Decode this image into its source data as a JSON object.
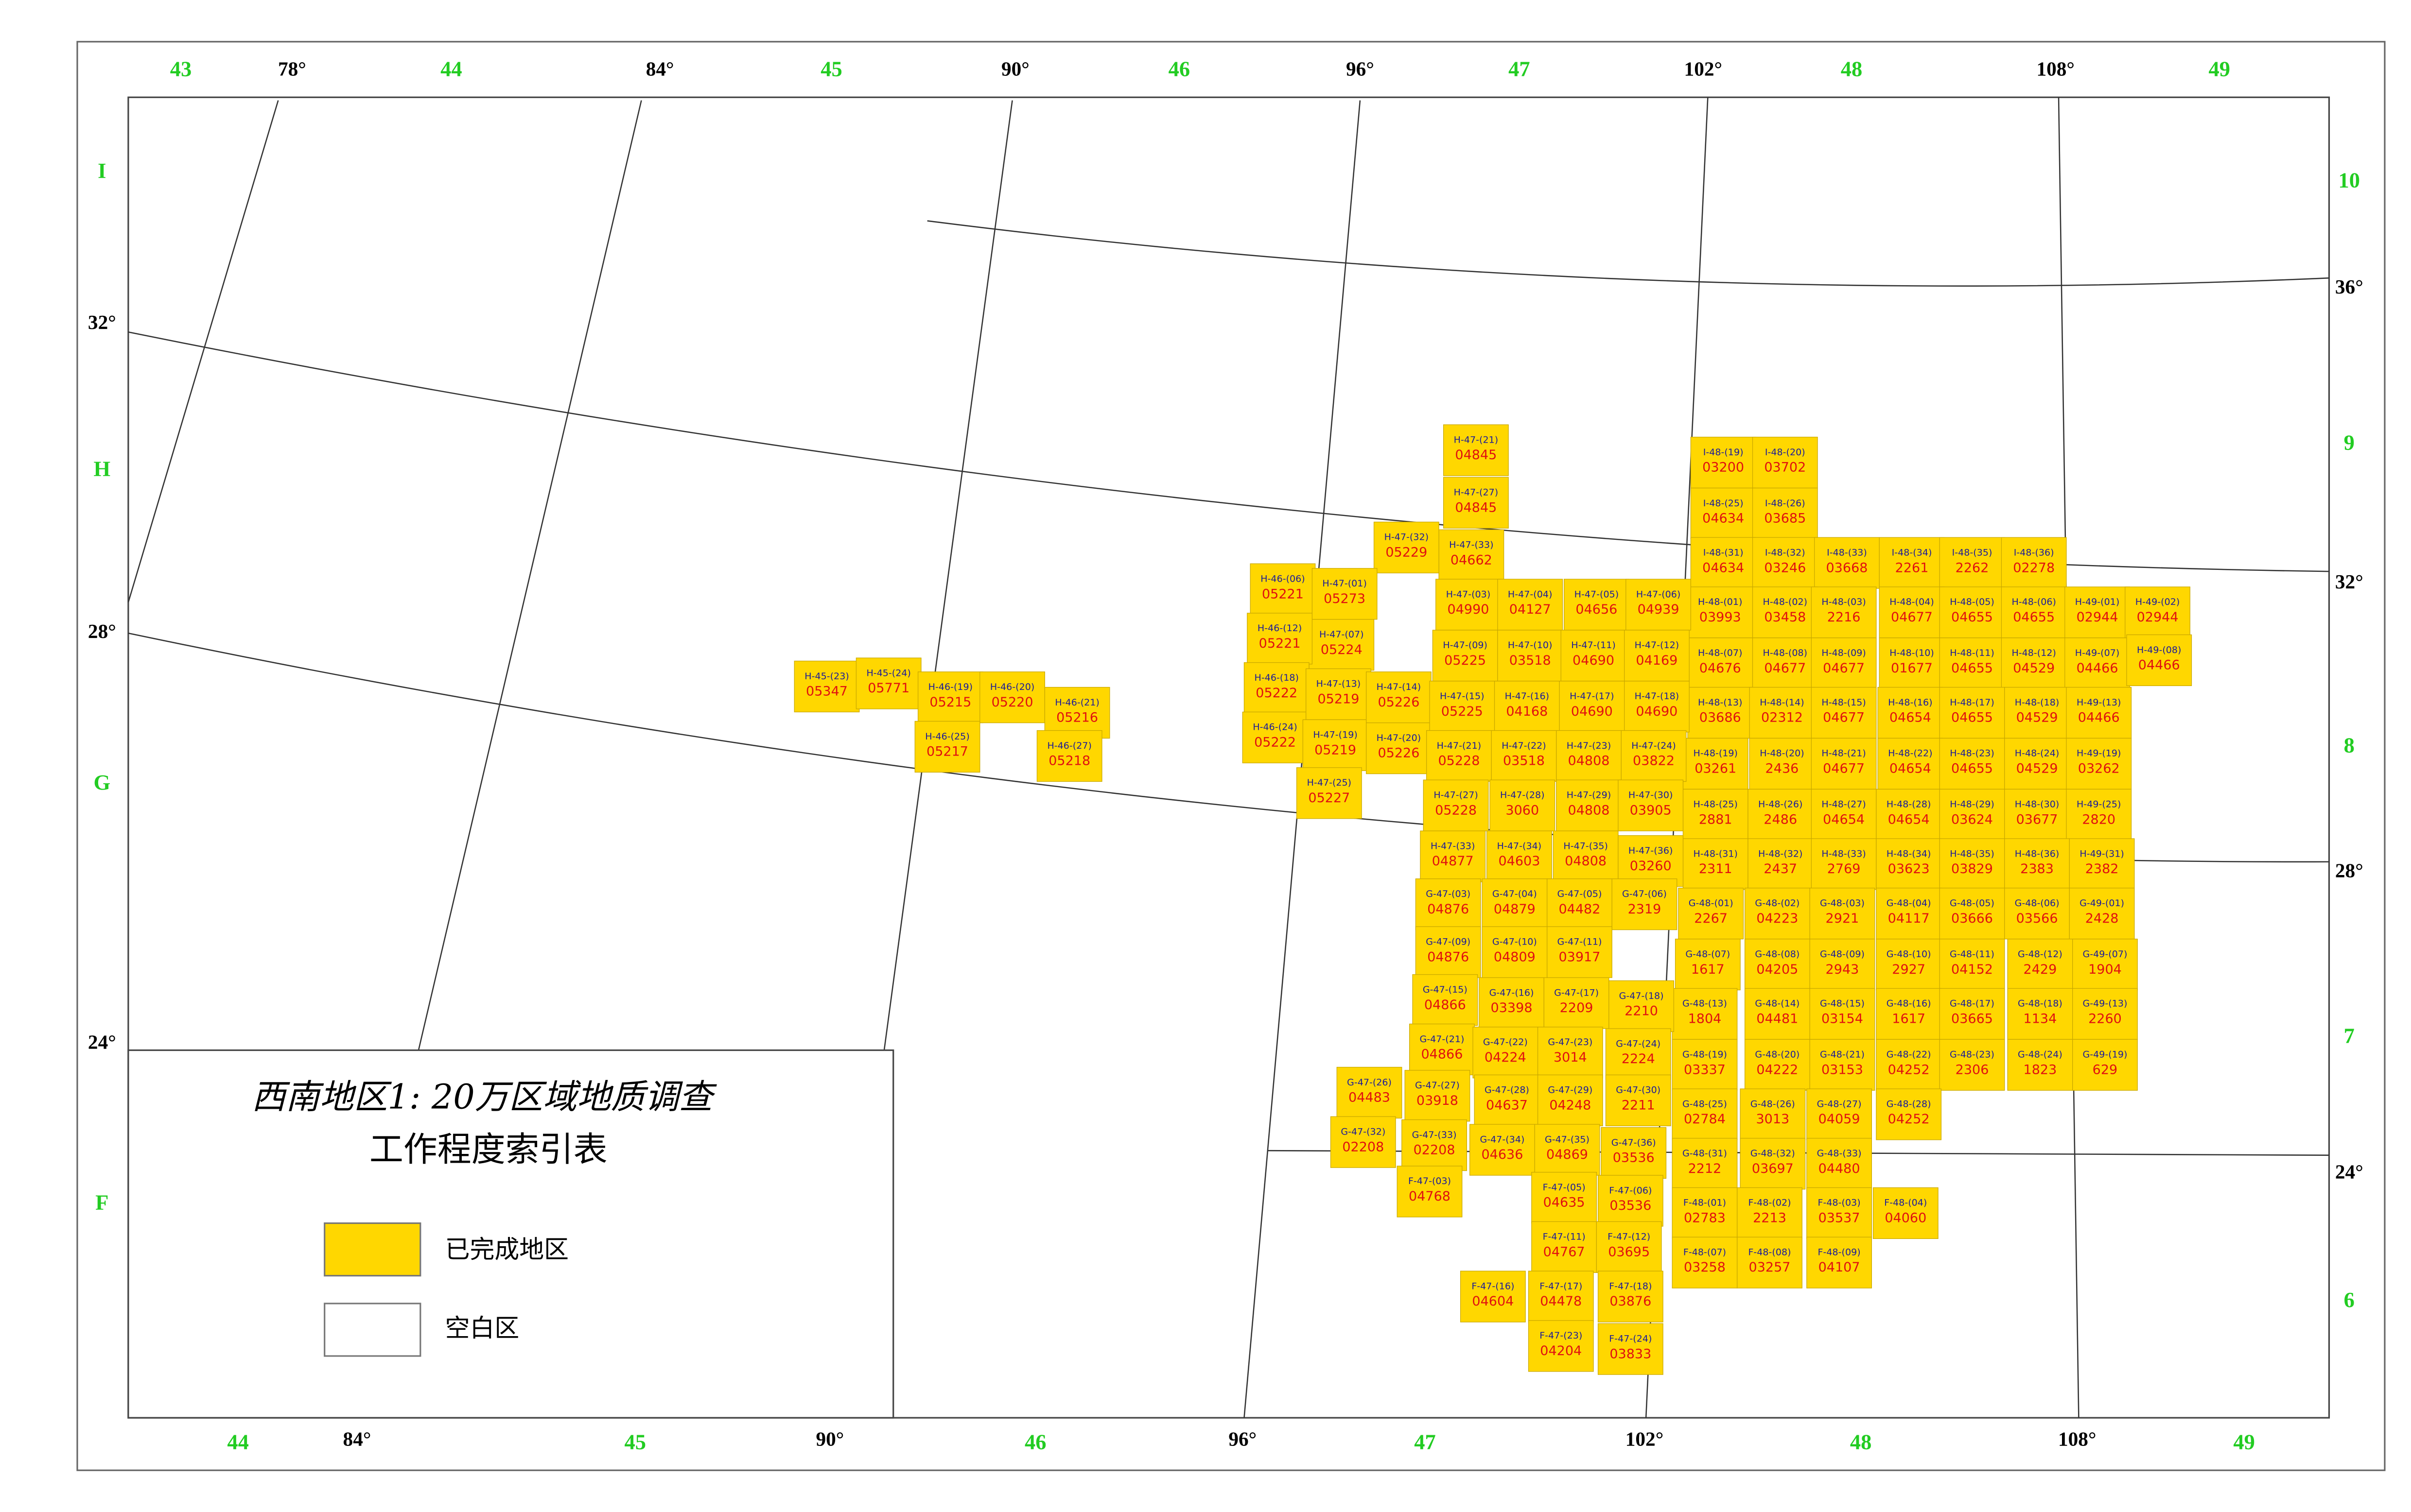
{
  "title_lines": [
    "西南地区1: 20万区域地质调查",
    "工作程度索引表"
  ],
  "legend": [
    {
      "label": "已完成地区"
    },
    {
      "label": "空白区"
    }
  ],
  "top_zones": [
    "43",
    "44",
    "45",
    "46",
    "47",
    "48",
    "49"
  ],
  "top_degrees": [
    "78°",
    "84°",
    "90°",
    "96°",
    "102°",
    "108°"
  ],
  "bottom_zones": [
    "44",
    "45",
    "46",
    "47",
    "48",
    "49"
  ],
  "bottom_degrees": [
    "84°",
    "90°",
    "96°",
    "102°",
    "108°"
  ],
  "left_labels": [
    "I",
    "32°",
    "H",
    "28°",
    "G",
    "24°",
    "F"
  ],
  "right_labels": [
    "10",
    "36°",
    "9",
    "32°",
    "8",
    "28°",
    "7",
    "24°",
    "6"
  ],
  "sheets": [
    {
      "code": "I-48-(19)",
      "number": "03200"
    },
    {
      "code": "I-48-(20)",
      "number": "03702"
    },
    {
      "code": "I-48-(25)",
      "number": "04634"
    },
    {
      "code": "I-48-(26)",
      "number": "03685"
    },
    {
      "code": "I-48-(31)",
      "number": "04634"
    },
    {
      "code": "I-48-(32)",
      "number": "03246"
    },
    {
      "code": "I-48-(33)",
      "number": "03668"
    },
    {
      "code": "I-48-(34)",
      "number": "2261"
    },
    {
      "code": "I-48-(35)",
      "number": "2262"
    },
    {
      "code": "I-48-(36)",
      "number": "02278"
    },
    {
      "code": "H-48-(01)",
      "number": "03993"
    },
    {
      "code": "H-48-(02)",
      "number": "03458"
    },
    {
      "code": "H-48-(03)",
      "number": "2216"
    },
    {
      "code": "H-48-(04)",
      "number": "04677"
    },
    {
      "code": "H-48-(05)",
      "number": "04655"
    },
    {
      "code": "H-48-(06)",
      "number": "04655"
    },
    {
      "code": "H-49-(01)",
      "number": "02944"
    },
    {
      "code": "H-49-(02)",
      "number": "02944"
    },
    {
      "code": "H-48-(07)",
      "number": "04676"
    },
    {
      "code": "H-48-(08)",
      "number": "04677"
    },
    {
      "code": "H-48-(09)",
      "number": "04677"
    },
    {
      "code": "H-48-(10)",
      "number": "01677"
    },
    {
      "code": "H-48-(11)",
      "number": "04655"
    },
    {
      "code": "H-48-(12)",
      "number": "04529"
    },
    {
      "code": "H-49-(07)",
      "number": "04466"
    },
    {
      "code": "H-49-(08)",
      "number": "04466"
    },
    {
      "code": "H-48-(13)",
      "number": "03686"
    },
    {
      "code": "H-48-(14)",
      "number": "02312"
    },
    {
      "code": "H-48-(15)",
      "number": "04677"
    },
    {
      "code": "H-48-(16)",
      "number": "04654"
    },
    {
      "code": "H-48-(17)",
      "number": "04655"
    },
    {
      "code": "H-48-(18)",
      "number": "04529"
    },
    {
      "code": "H-49-(13)",
      "number": "04466"
    },
    {
      "code": "H-48-(19)",
      "number": "03261"
    },
    {
      "code": "H-48-(20)",
      "number": "2436"
    },
    {
      "code": "H-48-(21)",
      "number": "04677"
    },
    {
      "code": "H-48-(22)",
      "number": "04654"
    },
    {
      "code": "H-48-(23)",
      "number": "04655"
    },
    {
      "code": "H-48-(24)",
      "number": "04529"
    },
    {
      "code": "H-49-(19)",
      "number": "03262"
    },
    {
      "code": "H-48-(25)",
      "number": "2881"
    },
    {
      "code": "H-48-(26)",
      "number": "2486"
    },
    {
      "code": "H-48-(27)",
      "number": "04654"
    },
    {
      "code": "H-48-(28)",
      "number": "04654"
    },
    {
      "code": "H-48-(29)",
      "number": "03624"
    },
    {
      "code": "H-48-(30)",
      "number": "03677"
    },
    {
      "code": "H-49-(25)",
      "number": "2820"
    },
    {
      "code": "H-48-(31)",
      "number": "2311"
    },
    {
      "code": "H-48-(32)",
      "number": "2437"
    },
    {
      "code": "H-48-(33)",
      "number": "2769"
    },
    {
      "code": "H-48-(34)",
      "number": "03623"
    },
    {
      "code": "H-48-(35)",
      "number": "03829"
    },
    {
      "code": "H-48-(36)",
      "number": "2383"
    },
    {
      "code": "H-49-(31)",
      "number": "2382"
    },
    {
      "code": "G-48-(01)",
      "number": "2267"
    },
    {
      "code": "G-48-(02)",
      "number": "04223"
    },
    {
      "code": "G-48-(03)",
      "number": "2921"
    },
    {
      "code": "G-48-(04)",
      "number": "04117"
    },
    {
      "code": "G-48-(05)",
      "number": "03666"
    },
    {
      "code": "G-48-(06)",
      "number": "03566"
    },
    {
      "code": "G-49-(01)",
      "number": "2428"
    },
    {
      "code": "G-48-(07)",
      "number": "1617"
    },
    {
      "code": "G-48-(08)",
      "number": "04205"
    },
    {
      "code": "G-48-(09)",
      "number": "2943"
    },
    {
      "code": "G-48-(10)",
      "number": "2927"
    },
    {
      "code": "G-48-(11)",
      "number": "04152"
    },
    {
      "code": "G-48-(12)",
      "number": "2429"
    },
    {
      "code": "G-49-(07)",
      "number": "1904"
    },
    {
      "code": "G-48-(13)",
      "number": "1804"
    },
    {
      "code": "G-48-(14)",
      "number": "04481"
    },
    {
      "code": "G-48-(15)",
      "number": "03154"
    },
    {
      "code": "G-48-(16)",
      "number": "1617"
    },
    {
      "code": "G-48-(17)",
      "number": "03665"
    },
    {
      "code": "G-48-(18)",
      "number": "1134"
    },
    {
      "code": "G-49-(13)",
      "number": "2260"
    },
    {
      "code": "G-48-(19)",
      "number": "03337"
    },
    {
      "code": "G-48-(20)",
      "number": "04222"
    },
    {
      "code": "G-48-(21)",
      "number": "03153"
    },
    {
      "code": "G-48-(22)",
      "number": "04252"
    },
    {
      "code": "G-48-(23)",
      "number": "2306"
    },
    {
      "code": "G-48-(24)",
      "number": "1823"
    },
    {
      "code": "G-49-(19)",
      "number": "629"
    },
    {
      "code": "G-48-(25)",
      "number": "02784"
    },
    {
      "code": "G-48-(26)",
      "number": "3013"
    },
    {
      "code": "G-48-(27)",
      "number": "04059"
    },
    {
      "code": "G-48-(28)",
      "number": "04252"
    },
    {
      "code": "G-48-(31)",
      "number": "2212"
    },
    {
      "code": "G-48-(32)",
      "number": "03697"
    },
    {
      "code": "G-48-(33)",
      "number": "04480"
    },
    {
      "code": "F-48-(01)",
      "number": "02783"
    },
    {
      "code": "F-48-(02)",
      "number": "2213"
    },
    {
      "code": "F-48-(03)",
      "number": "03537"
    },
    {
      "code": "F-48-(04)",
      "number": "04060"
    },
    {
      "code": "F-48-(07)",
      "number": "03258"
    },
    {
      "code": "F-48-(08)",
      "number": "03257"
    },
    {
      "code": "F-48-(09)",
      "number": "04107"
    },
    {
      "code": "H-47-(21)",
      "number": "04845"
    },
    {
      "code": "H-47-(27)",
      "number": "04845"
    },
    {
      "code": "H-47-(33)",
      "number": "04662"
    },
    {
      "code": "H-47-(32)",
      "number": "05229"
    },
    {
      "code": "H-46-(06)",
      "number": "05221"
    },
    {
      "code": "H-47-(01)",
      "number": "05273"
    },
    {
      "code": "H-47-(07)",
      "number": "05224"
    },
    {
      "code": "H-46-(12)",
      "number": "05221"
    },
    {
      "code": "H-46-(18)",
      "number": "05222"
    },
    {
      "code": "H-46-(24)",
      "number": "05222"
    },
    {
      "code": "H-47-(13)",
      "number": "05219"
    },
    {
      "code": "H-47-(19)",
      "number": "05219"
    },
    {
      "code": "H-47-(25)",
      "number": "05227"
    },
    {
      "code": "H-47-(14)",
      "number": "05226"
    },
    {
      "code": "H-47-(20)",
      "number": "05226"
    },
    {
      "code": "H-45-(23)",
      "number": "05347"
    },
    {
      "code": "H-45-(24)",
      "number": "05771"
    },
    {
      "code": "H-46-(19)",
      "number": "05215"
    },
    {
      "code": "H-46-(20)",
      "number": "05220"
    },
    {
      "code": "H-46-(21)",
      "number": "05216"
    },
    {
      "code": "H-46-(25)",
      "number": "05217"
    },
    {
      "code": "H-46-(27)",
      "number": "05218"
    },
    {
      "code": "H-47-(03)",
      "number": "04990"
    },
    {
      "code": "H-47-(04)",
      "number": "04127"
    },
    {
      "code": "H-47-(05)",
      "number": "04656"
    },
    {
      "code": "H-47-(06)",
      "number": "04939"
    },
    {
      "code": "H-47-(09)",
      "number": "05225"
    },
    {
      "code": "H-47-(10)",
      "number": "03518"
    },
    {
      "code": "H-47-(11)",
      "number": "04690"
    },
    {
      "code": "H-47-(12)",
      "number": "04169"
    },
    {
      "code": "H-47-(15)",
      "number": "05225"
    },
    {
      "code": "H-47-(16)",
      "number": "04168"
    },
    {
      "code": "H-47-(17)",
      "number": "04690"
    },
    {
      "code": "H-47-(18)",
      "number": "04690"
    },
    {
      "code": "H-47-(21)",
      "number": "05228"
    },
    {
      "code": "H-47-(22)",
      "number": "03518"
    },
    {
      "code": "H-47-(23)",
      "number": "04808"
    },
    {
      "code": "H-47-(24)",
      "number": "03822"
    },
    {
      "code": "H-47-(27)",
      "number": "05228"
    },
    {
      "code": "H-47-(28)",
      "number": "3060"
    },
    {
      "code": "H-47-(29)",
      "number": "04808"
    },
    {
      "code": "H-47-(30)",
      "number": "03905"
    },
    {
      "code": "H-47-(33)",
      "number": "04877"
    },
    {
      "code": "H-47-(34)",
      "number": "04603"
    },
    {
      "code": "H-47-(35)",
      "number": "04808"
    },
    {
      "code": "H-47-(36)",
      "number": "03260"
    },
    {
      "code": "G-47-(03)",
      "number": "04876"
    },
    {
      "code": "G-47-(04)",
      "number": "04879"
    },
    {
      "code": "G-47-(05)",
      "number": "04482"
    },
    {
      "code": "G-47-(06)",
      "number": "2319"
    },
    {
      "code": "G-47-(09)",
      "number": "04876"
    },
    {
      "code": "G-47-(10)",
      "number": "04809"
    },
    {
      "code": "G-47-(11)",
      "number": "03917"
    },
    {
      "code": "G-47-(15)",
      "number": "04866"
    },
    {
      "code": "G-47-(16)",
      "number": "03398"
    },
    {
      "code": "G-47-(17)",
      "number": "2209"
    },
    {
      "code": "G-47-(18)",
      "number": "2210"
    },
    {
      "code": "G-47-(21)",
      "number": "04866"
    },
    {
      "code": "G-47-(22)",
      "number": "04224"
    },
    {
      "code": "G-47-(23)",
      "number": "3014"
    },
    {
      "code": "G-47-(24)",
      "number": "2224"
    },
    {
      "code": "G-47-(26)",
      "number": "04483"
    },
    {
      "code": "G-47-(27)",
      "number": "03918"
    },
    {
      "code": "G-47-(28)",
      "number": "04637"
    },
    {
      "code": "G-47-(29)",
      "number": "04248"
    },
    {
      "code": "G-47-(30)",
      "number": "2211"
    },
    {
      "code": "G-47-(32)",
      "number": "02208"
    },
    {
      "code": "G-47-(33)",
      "number": "02208"
    },
    {
      "code": "G-47-(34)",
      "number": "04636"
    },
    {
      "code": "G-47-(35)",
      "number": "04869"
    },
    {
      "code": "G-47-(36)",
      "number": "03536"
    },
    {
      "code": "F-47-(03)",
      "number": "04768"
    },
    {
      "code": "F-47-(05)",
      "number": "04635"
    },
    {
      "code": "F-47-(06)",
      "number": "03536"
    },
    {
      "code": "F-47-(11)",
      "number": "04767"
    },
    {
      "code": "F-47-(12)",
      "number": "03695"
    },
    {
      "code": "F-47-(16)",
      "number": "04604"
    },
    {
      "code": "F-47-(17)",
      "number": "04478"
    },
    {
      "code": "F-47-(18)",
      "number": "03876"
    },
    {
      "code": "F-47-(23)",
      "number": "04204"
    },
    {
      "code": "F-47-(24)",
      "number": "03833"
    }
  ]
}
